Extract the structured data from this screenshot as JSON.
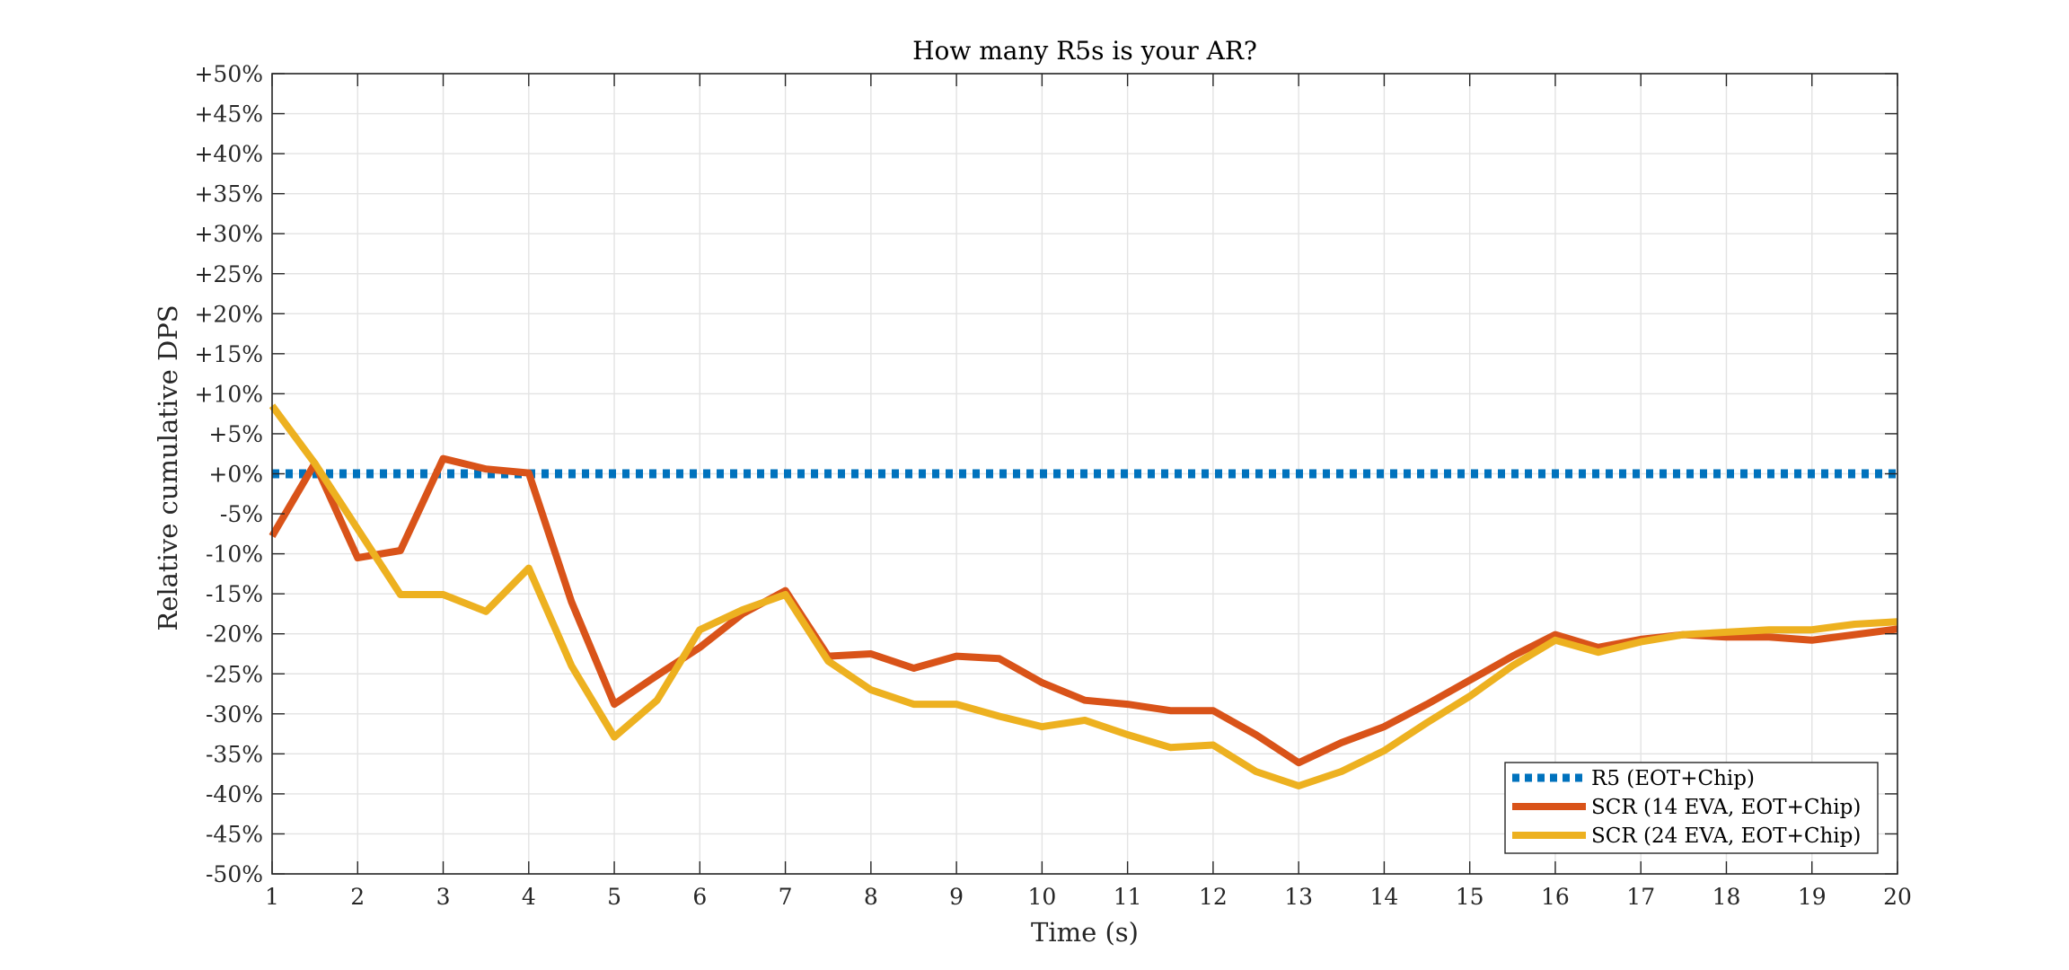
{
  "chart_data": {
    "type": "line",
    "title": "How many R5s is your AR?",
    "xlabel": "Time (s)",
    "ylabel": "Relative cumulative DPS",
    "xlim": [
      1,
      20
    ],
    "ylim": [
      -50,
      50
    ],
    "x_ticks": [
      "1",
      "2",
      "3",
      "4",
      "5",
      "6",
      "7",
      "8",
      "9",
      "10",
      "11",
      "12",
      "13",
      "14",
      "15",
      "16",
      "17",
      "18",
      "19",
      "20"
    ],
    "y_ticks": [
      "+50%",
      "+45%",
      "+40%",
      "+35%",
      "+30%",
      "+25%",
      "+20%",
      "+15%",
      "+10%",
      "+5%",
      "+0%",
      "-5%",
      "-10%",
      "-15%",
      "-20%",
      "-25%",
      "-30%",
      "-35%",
      "-40%",
      "-45%",
      "-50%"
    ],
    "y_tick_values": [
      50,
      45,
      40,
      35,
      30,
      25,
      20,
      15,
      10,
      5,
      0,
      -5,
      -10,
      -15,
      -20,
      -25,
      -30,
      -35,
      -40,
      -45,
      -50
    ],
    "grid": true,
    "legend_position": "bottom-right",
    "x": [
      1,
      1.5,
      2,
      2.5,
      3,
      3.5,
      4,
      4.5,
      5,
      5.5,
      6,
      6.5,
      7,
      7.5,
      8,
      8.5,
      9,
      9.5,
      10,
      10.5,
      11,
      11.5,
      12,
      12.5,
      13,
      13.5,
      14,
      14.5,
      15,
      15.5,
      16,
      16.5,
      17,
      17.5,
      18,
      18.5,
      19,
      19.5,
      20
    ],
    "series": [
      {
        "name": "R5 (EOT+Chip)",
        "color": "#0072BD",
        "style": "dotted",
        "values": [
          0,
          0,
          0,
          0,
          0,
          0,
          0,
          0,
          0,
          0,
          0,
          0,
          0,
          0,
          0,
          0,
          0,
          0,
          0,
          0,
          0,
          0,
          0,
          0,
          0,
          0,
          0,
          0,
          0,
          0,
          0,
          0,
          0,
          0,
          0,
          0,
          0,
          0,
          0
        ]
      },
      {
        "name": "SCR (14 EVA, EOT+Chip)",
        "color": "#D95319",
        "style": "solid",
        "values": [
          -7.8,
          1.3,
          -10.5,
          -9.6,
          1.9,
          0.6,
          0.1,
          -16,
          -28.8,
          -25.2,
          -21.7,
          -17.5,
          -14.6,
          -22.8,
          -22.5,
          -24.3,
          -22.8,
          -23.1,
          -26.1,
          -28.3,
          -28.8,
          -29.6,
          -29.6,
          -32.6,
          -36.1,
          -33.6,
          -31.6,
          -28.8,
          -25.8,
          -22.8,
          -20.1,
          -21.7,
          -20.7,
          -20.1,
          -20.4,
          -20.4,
          -20.8,
          -20.1,
          -19.4
        ]
      },
      {
        "name": "SCR (24 EVA, EOT+Chip)",
        "color": "#EDB120",
        "style": "solid",
        "values": [
          8.5,
          1.3,
          -6.9,
          -15.1,
          -15.1,
          -17.2,
          -11.8,
          -24,
          -32.9,
          -28.3,
          -19.5,
          -17,
          -15.1,
          -23.4,
          -27,
          -28.8,
          -28.8,
          -30.3,
          -31.6,
          -30.8,
          -32.6,
          -34.2,
          -33.9,
          -37.2,
          -39,
          -37.2,
          -34.6,
          -31.1,
          -27.8,
          -24,
          -20.8,
          -22.3,
          -21,
          -20.1,
          -19.8,
          -19.5,
          -19.5,
          -18.8,
          -18.5
        ]
      }
    ]
  }
}
